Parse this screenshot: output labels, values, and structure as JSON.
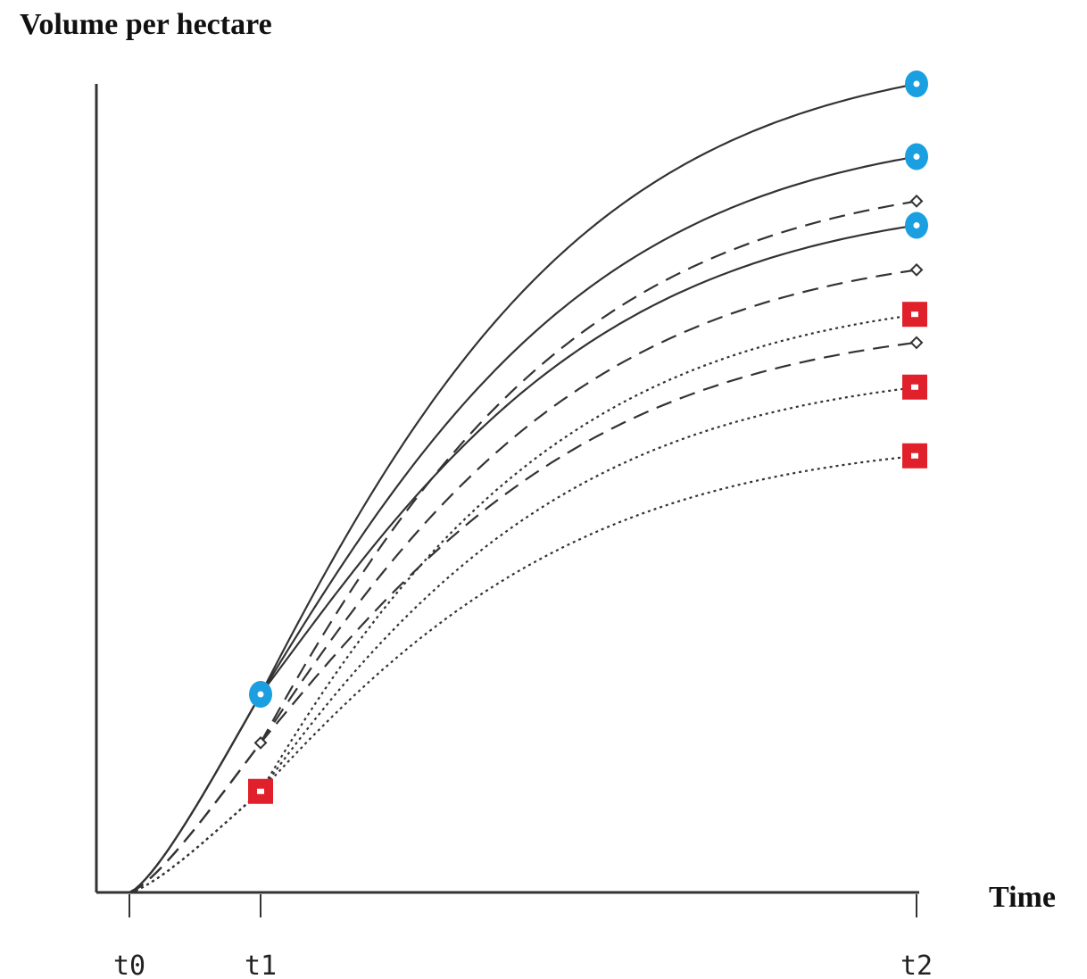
{
  "chart_data": {
    "type": "line",
    "title": "",
    "ylabel": "Volume per hectare",
    "xlabel": "Time",
    "x_ticks": [
      "t0",
      "t1",
      "t2"
    ],
    "xlim": [
      -0.22,
      6.0
    ],
    "ylim": [
      0,
      1.0
    ],
    "grid": false,
    "legend": "none",
    "colors": {
      "circle": "#1a9fe0",
      "square": "#e0202a",
      "line": "#333333"
    },
    "series": [
      {
        "style": "solid",
        "marker": "circle",
        "y_t1": 0.245,
        "y_t2": 1.0
      },
      {
        "style": "solid",
        "marker": "circle",
        "y_t1": 0.245,
        "y_t2": 0.91
      },
      {
        "style": "dashed",
        "marker": "diamond",
        "y_t1": 0.185,
        "y_t2": 0.855
      },
      {
        "style": "solid",
        "marker": "circle",
        "y_t1": 0.245,
        "y_t2": 0.825
      },
      {
        "style": "dashed",
        "marker": "diamond",
        "y_t1": 0.185,
        "y_t2": 0.77
      },
      {
        "style": "dotted",
        "marker": "square",
        "y_t1": 0.125,
        "y_t2": 0.715
      },
      {
        "style": "dashed",
        "marker": "diamond",
        "y_t1": 0.185,
        "y_t2": 0.68
      },
      {
        "style": "dotted",
        "marker": "square",
        "y_t1": 0.125,
        "y_t2": 0.625
      },
      {
        "style": "dotted",
        "marker": "square",
        "y_t1": 0.125,
        "y_t2": 0.54
      }
    ],
    "highlighted_markers_at_t1": [
      {
        "marker": "circle",
        "y": 0.245
      },
      {
        "marker": "diamond",
        "y": 0.185
      },
      {
        "marker": "square",
        "y": 0.125
      }
    ]
  }
}
